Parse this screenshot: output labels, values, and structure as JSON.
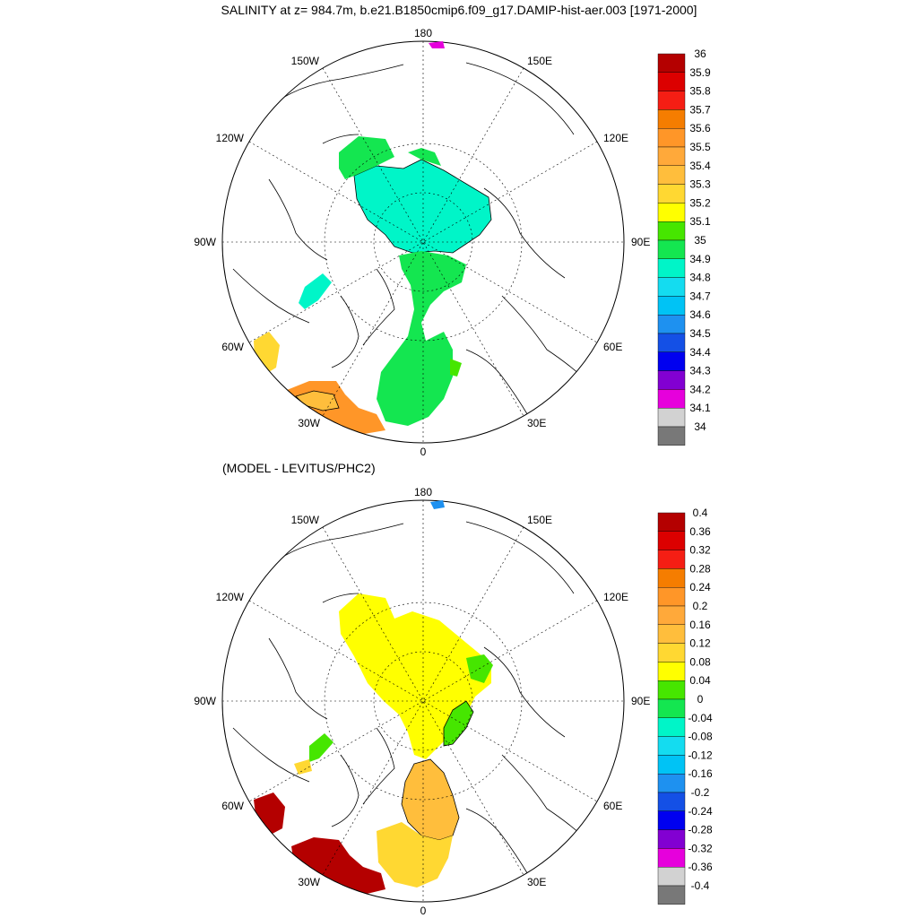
{
  "title": "SALINITY at z= 984.7m, b.e21.B1850cmip6.f09_g17.DAMIP-hist-aer.003 [1971-2000]",
  "subtitle": "(MODEL - LEVITUS/PHC2)",
  "longitude_labels": {
    "top": "180",
    "bottom": "0",
    "left": "90W",
    "right": "90E",
    "upper_left_1": "150W",
    "upper_left_2": "120W",
    "upper_right_1": "150E",
    "upper_right_2": "120E",
    "lower_left_1": "60W",
    "lower_left_2": "30W",
    "lower_right_1": "60E",
    "lower_right_2": "30E"
  },
  "colorbar_top": {
    "labels": [
      "36",
      "35.9",
      "35.8",
      "35.7",
      "35.6",
      "35.5",
      "35.4",
      "35.3",
      "35.2",
      "35.1",
      "35",
      "34.9",
      "34.8",
      "34.7",
      "34.6",
      "34.5",
      "34.4",
      "34.3",
      "34.2",
      "34.1",
      "34"
    ],
    "colors": [
      "#b40000",
      "#dc0000",
      "#f51e14",
      "#f57d00",
      "#ff9628",
      "#ffa93a",
      "#ffbe3c",
      "#ffd832",
      "#ffff00",
      "#46e600",
      "#14e650",
      "#00f5c8",
      "#14dcf0",
      "#00c3f5",
      "#1e91f0",
      "#1450e6",
      "#0000f0",
      "#8200d2",
      "#e600dc",
      "#d2d2d2",
      "#787878"
    ]
  },
  "colorbar_bottom": {
    "labels": [
      "0.4",
      "0.36",
      "0.32",
      "0.28",
      "0.24",
      "0.2",
      "0.16",
      "0.12",
      "0.08",
      "0.04",
      "0",
      "-0.04",
      "-0.08",
      "-0.12",
      "-0.16",
      "-0.2",
      "-0.24",
      "-0.28",
      "-0.32",
      "-0.36",
      "-0.4"
    ],
    "colors": [
      "#b40000",
      "#dc0000",
      "#f51e14",
      "#f57d00",
      "#ff9628",
      "#ffa93a",
      "#ffbe3c",
      "#ffd832",
      "#ffff00",
      "#46e600",
      "#14e650",
      "#00f5c8",
      "#14dcf0",
      "#00c3f5",
      "#1e91f0",
      "#1450e6",
      "#0000f0",
      "#8200d2",
      "#e600dc",
      "#d2d2d2",
      "#787878"
    ]
  }
}
